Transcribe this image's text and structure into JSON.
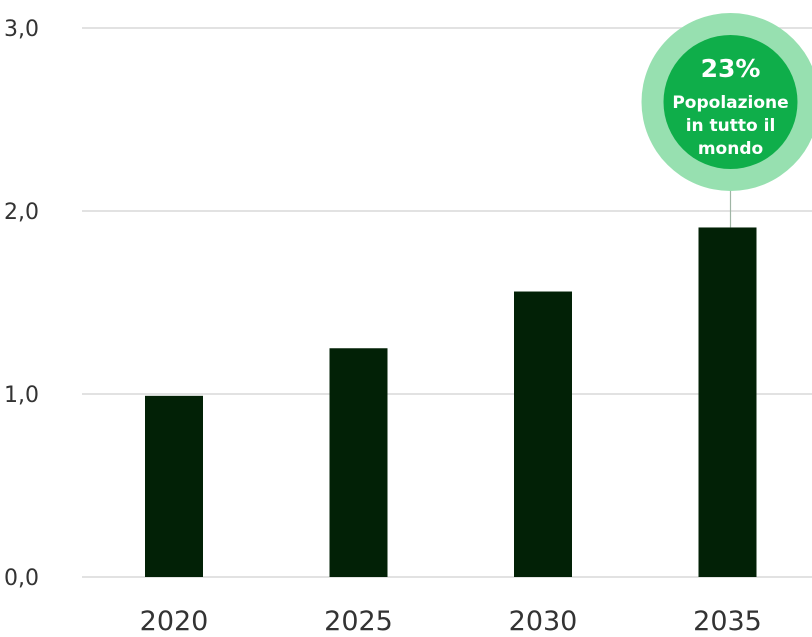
{
  "chart_data": {
    "type": "bar",
    "categories": [
      "2020",
      "2025",
      "2030",
      "2035"
    ],
    "values": [
      0.99,
      1.25,
      1.56,
      1.91
    ],
    "y_ticks": [
      "0,0",
      "1,0",
      "2,0",
      "3,0"
    ],
    "ylim": [
      0,
      3
    ],
    "grid": true,
    "title": "",
    "xlabel": "",
    "ylabel": "",
    "bar_color": "#022106",
    "gridline_color": "#d9d9d9",
    "callout": {
      "category": "2035",
      "value_text": "23%",
      "lines": [
        "Popolazione",
        "in tutto il",
        "mondo"
      ],
      "inner_color": "#0fae4a",
      "outer_color": "#97e0b0"
    }
  }
}
